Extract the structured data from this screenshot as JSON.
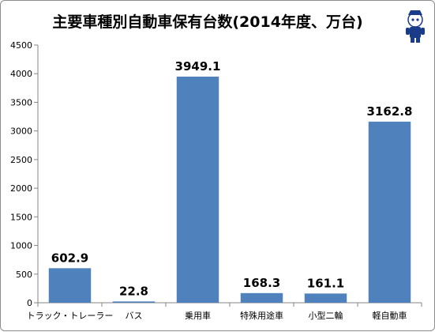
{
  "chart_data": {
    "type": "bar",
    "title": "主要車種別自動車保有台数(2014年度、万台)",
    "categories": [
      "トラック・トレーラー",
      "バス",
      "乗用車",
      "特殊用途車",
      "小型二輪",
      "軽自動車"
    ],
    "values": [
      602.9,
      22.8,
      3949.1,
      168.3,
      161.1,
      3162.8
    ],
    "data_labels": [
      "602.9",
      "22.8",
      "3949.1",
      "168.3",
      "161.1",
      "3162.8"
    ],
    "yticks": [
      "0",
      "500",
      "1000",
      "1500",
      "2000",
      "2500",
      "3000",
      "3500",
      "4000",
      "4500"
    ],
    "ylim": [
      0,
      4500
    ],
    "grid": false,
    "bar_color": "#4f81bd"
  },
  "logo": {
    "name": "mascot-icon"
  }
}
